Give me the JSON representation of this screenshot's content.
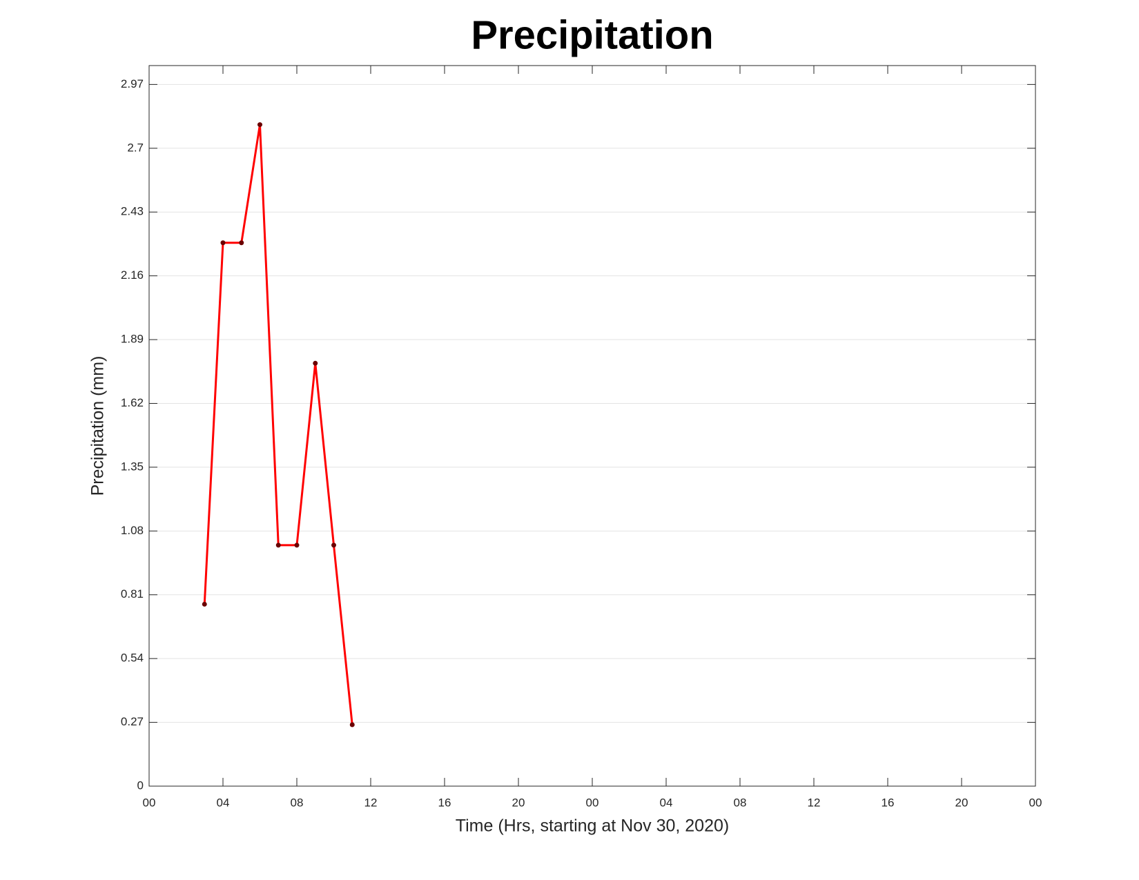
{
  "chart_data": {
    "type": "line",
    "title": "Precipitation",
    "x_label": "Time (Hrs, starting at Nov 30, 2020)",
    "y_label": "Precipitation (mm)",
    "x": [
      3,
      4,
      5,
      6,
      7,
      8,
      9,
      10,
      11
    ],
    "series": [
      {
        "name": "Precipitation",
        "color": "#ff0000",
        "marker_color": "#6b0000",
        "values": [
          0.77,
          2.3,
          2.3,
          2.8,
          1.02,
          1.02,
          1.79,
          1.02,
          0.26
        ]
      }
    ],
    "xlim": [
      0,
      48
    ],
    "xticks": [
      {
        "value": 0,
        "label": "00"
      },
      {
        "value": 4,
        "label": "04"
      },
      {
        "value": 8,
        "label": "08"
      },
      12,
      16,
      20,
      {
        "value": 24,
        "label": "00"
      },
      {
        "value": 28,
        "label": "04"
      },
      {
        "value": 32,
        "label": "08"
      },
      {
        "value": 36,
        "label": "12"
      },
      {
        "value": 40,
        "label": "16"
      },
      {
        "value": 44,
        "label": "20"
      },
      {
        "value": 48,
        "label": "00"
      }
    ],
    "ylim": [
      0,
      3.05
    ],
    "yticks": [
      0,
      0.27,
      0.54,
      0.81,
      1.08,
      1.35,
      1.62,
      1.89,
      2.16,
      2.43,
      2.7,
      2.97
    ],
    "grid": true
  }
}
